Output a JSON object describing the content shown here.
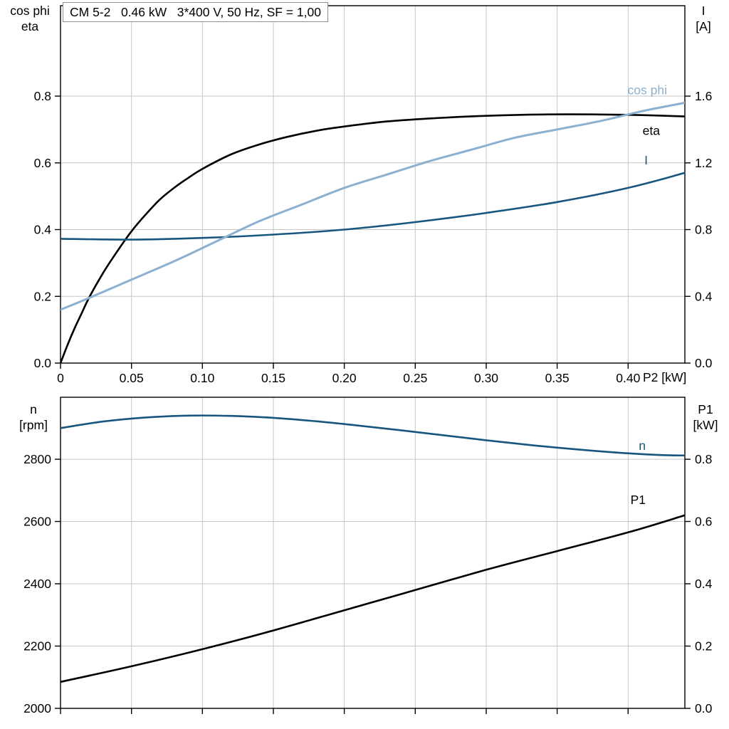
{
  "page": {
    "background": "#ffffff"
  },
  "colors": {
    "black": "#000000",
    "dark_blue": "#17567e",
    "light_blue": "#8cb0cf",
    "grid": "#c6c6c6",
    "frame": "#000000",
    "title_box_border": "#8f8f8f",
    "text": "#000000"
  },
  "chart_data": [
    {
      "type": "line",
      "id": "electrical-curves",
      "title": "CM 5-2   0.46 kW   3*400 V, 50 Hz, SF = 1,00",
      "grid": true,
      "legend": "inline-labels",
      "x_axis": {
        "label": "P2 [kW]",
        "range": [
          0,
          0.44
        ],
        "ticks": [
          0,
          0.05,
          0.1,
          0.15,
          0.2,
          0.25,
          0.3,
          0.35,
          0.4
        ],
        "tick_labels": [
          "0",
          "0.05",
          "0.10",
          "0.15",
          "0.20",
          "0.25",
          "0.30",
          "0.35",
          "0.40"
        ]
      },
      "y_left": {
        "title_lines": [
          "cos phi",
          "eta"
        ],
        "range": [
          0,
          1.071
        ],
        "ticks": [
          0,
          0.2,
          0.4,
          0.6,
          0.8
        ],
        "tick_labels": [
          "0.0",
          "0.2",
          "0.4",
          "0.6",
          "0.8"
        ]
      },
      "y_right": {
        "title_lines": [
          "I",
          "[A]"
        ],
        "range": [
          0,
          2.142
        ],
        "ticks": [
          0,
          0.4,
          0.8,
          1.2,
          1.6
        ],
        "tick_labels": [
          "0.0",
          "0.4",
          "0.8",
          "1.2",
          "1.6"
        ]
      },
      "series": [
        {
          "name": "eta",
          "axis": "left",
          "color": "#000000",
          "width": 2.6,
          "label_dx": -35,
          "label_dy": 26,
          "x": [
            0,
            0.005,
            0.01,
            0.015,
            0.02,
            0.03,
            0.04,
            0.05,
            0.06,
            0.07,
            0.08,
            0.09,
            0.1,
            0.12,
            0.14,
            0.16,
            0.18,
            0.2,
            0.23,
            0.26,
            0.3,
            0.34,
            0.38,
            0.41,
            0.44
          ],
          "y": [
            0,
            0.055,
            0.105,
            0.15,
            0.195,
            0.27,
            0.335,
            0.395,
            0.445,
            0.49,
            0.525,
            0.555,
            0.582,
            0.625,
            0.655,
            0.678,
            0.696,
            0.709,
            0.724,
            0.733,
            0.741,
            0.745,
            0.745,
            0.743,
            0.739
          ]
        },
        {
          "name": "I",
          "axis": "right",
          "color": "#17567e",
          "width": 2.6,
          "label_dx": -52,
          "label_dy": -12,
          "x": [
            0,
            0.05,
            0.1,
            0.15,
            0.2,
            0.25,
            0.3,
            0.35,
            0.4,
            0.44
          ],
          "y": [
            0.745,
            0.74,
            0.75,
            0.77,
            0.8,
            0.845,
            0.9,
            0.965,
            1.05,
            1.14
          ]
        },
        {
          "name": "cos phi",
          "axis": "left",
          "color": "#8cb0cf",
          "width": 3,
          "label_dx": -25,
          "label_dy": -12,
          "x": [
            0,
            0.02,
            0.05,
            0.08,
            0.11,
            0.14,
            0.17,
            0.2,
            0.23,
            0.26,
            0.29,
            0.32,
            0.35,
            0.38,
            0.41,
            0.44
          ],
          "y": [
            0.16,
            0.195,
            0.25,
            0.305,
            0.365,
            0.425,
            0.475,
            0.525,
            0.565,
            0.605,
            0.64,
            0.675,
            0.7,
            0.725,
            0.755,
            0.78
          ]
        }
      ]
    },
    {
      "type": "line",
      "id": "speed-power-curves",
      "title": "",
      "grid": true,
      "legend": "inline-labels",
      "x_axis": {
        "label": "",
        "range": [
          0,
          0.44
        ],
        "ticks": [
          0,
          0.05,
          0.1,
          0.15,
          0.2,
          0.25,
          0.3,
          0.35,
          0.4
        ],
        "tick_labels": []
      },
      "y_left": {
        "title_lines": [
          "n",
          "[rpm]"
        ],
        "range": [
          2000,
          2999
        ],
        "ticks": [
          2000,
          2200,
          2400,
          2600,
          2800
        ],
        "tick_labels": [
          "2000",
          "2200",
          "2400",
          "2600",
          "2800"
        ]
      },
      "y_right": {
        "title_lines": [
          "P1",
          "[kW]"
        ],
        "range": [
          0,
          0.999
        ],
        "ticks": [
          0,
          0.2,
          0.4,
          0.6,
          0.8
        ],
        "tick_labels": [
          "0.0",
          "0.2",
          "0.4",
          "0.6",
          "0.8"
        ]
      },
      "series": [
        {
          "name": "n",
          "axis": "left",
          "color": "#17567e",
          "width": 2.6,
          "label_dx": -55,
          "label_dy": -8,
          "x": [
            0,
            0.03,
            0.06,
            0.09,
            0.12,
            0.15,
            0.18,
            0.21,
            0.24,
            0.27,
            0.3,
            0.33,
            0.36,
            0.39,
            0.42,
            0.44
          ],
          "y": [
            2900,
            2921,
            2934,
            2940,
            2939,
            2933,
            2922,
            2908,
            2893,
            2877,
            2861,
            2846,
            2833,
            2822,
            2814,
            2812
          ]
        },
        {
          "name": "P1",
          "axis": "right",
          "color": "#000000",
          "width": 2.6,
          "label_dx": -55,
          "label_dy": -16,
          "x": [
            0,
            0.05,
            0.1,
            0.15,
            0.2,
            0.25,
            0.3,
            0.35,
            0.4,
            0.44
          ],
          "y": [
            0.085,
            0.135,
            0.19,
            0.25,
            0.315,
            0.38,
            0.445,
            0.505,
            0.565,
            0.62
          ]
        }
      ]
    }
  ]
}
